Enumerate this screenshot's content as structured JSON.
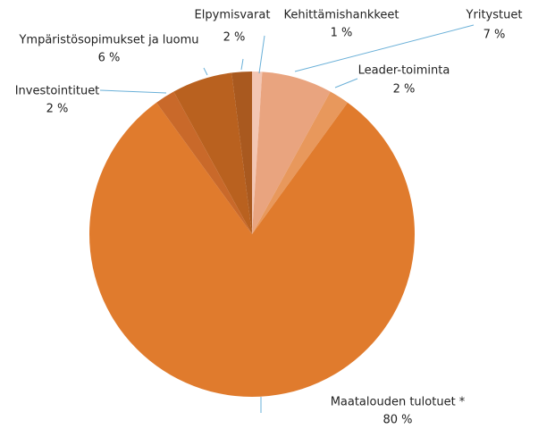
{
  "chart_data": {
    "type": "pie",
    "categories": [
      "Kehittämishankkeet",
      "Yritystuet",
      "Leader-toiminta",
      "Maatalouden tulotuet *",
      "Investointituet",
      "Ympäristösopimukset ja luomu",
      "Elpymisvarat"
    ],
    "values": [
      1,
      7,
      2,
      80,
      2,
      6,
      2
    ],
    "value_labels": [
      "1 %",
      "7 %",
      "2 %",
      "80 %",
      "2 %",
      "6 %",
      "2 %"
    ],
    "colors": [
      "#f3c6b3",
      "#e9a47f",
      "#e8985c",
      "#e07b2d",
      "#c9692a",
      "#b9611f",
      "#a9591f"
    ]
  }
}
